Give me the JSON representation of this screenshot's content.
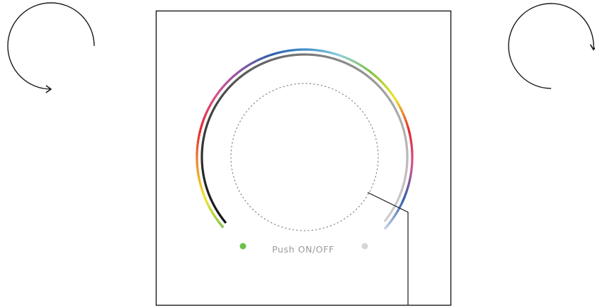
{
  "panel": {
    "button_label": "Push ON/OFF"
  },
  "icons": {
    "left": "rotate-clockwise-arrow-icon",
    "right": "rotate-clockwise-arrow-icon"
  },
  "colors": {
    "frame": "#1a1a1a",
    "label": "#9a9a9a",
    "dashed_ring": "#8a8a8a",
    "end_dot_left": "#6cc04a",
    "end_dot_right": "#d6d6d6",
    "spectrum": [
      "#7fc241",
      "#f2e52b",
      "#ef8a2a",
      "#e5262b",
      "#d6548f",
      "#8b56a2",
      "#2d5fab",
      "#3f8fc9",
      "#8fd0d8",
      "#7fc241",
      "#f2e52b",
      "#e5262b",
      "#d6548f",
      "#2d5fab",
      "#c7d3e6"
    ],
    "brightness": [
      "#111111",
      "#444444",
      "#777777",
      "#aaaaaa",
      "#d0d0d0"
    ]
  }
}
